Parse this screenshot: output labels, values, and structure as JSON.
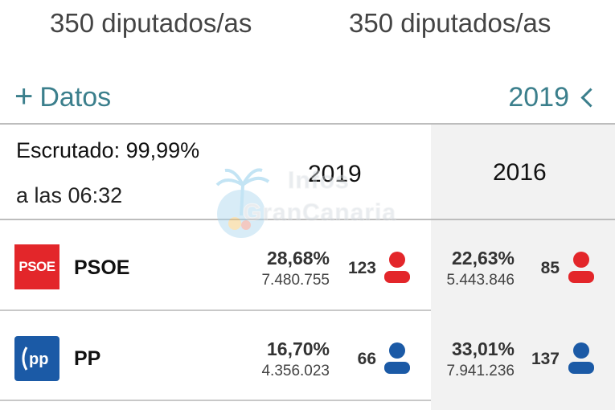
{
  "header": {
    "seats_left": "350 diputados/as",
    "seats_right": "350 diputados/as"
  },
  "controls": {
    "datos_plus": "+",
    "datos_label": "Datos",
    "year_selected": "2019"
  },
  "status": {
    "escrutado": "Escrutado: 99,99%",
    "hora": "a las 06:32"
  },
  "columns": {
    "current_year": "2019",
    "previous_year": "2016"
  },
  "watermark": {
    "line1": "Infos",
    "line2": "GranCanaria"
  },
  "parties": [
    {
      "logo_text": "PSOE",
      "name": "PSOE",
      "color": "#e3262a",
      "y2019": {
        "pct": "28,68%",
        "votes": "7.480.755",
        "seats": "123"
      },
      "y2016": {
        "pct": "22,63%",
        "votes": "5.443.846",
        "seats": "85"
      }
    },
    {
      "logo_text": "pp",
      "name": "PP",
      "color": "#1b5aa6",
      "y2019": {
        "pct": "16,70%",
        "votes": "4.356.023",
        "seats": "66"
      },
      "y2016": {
        "pct": "33,01%",
        "votes": "7.941.236",
        "seats": "137"
      }
    }
  ],
  "icons": {
    "person": "person-icon",
    "chevron": "chevron-left-icon"
  }
}
